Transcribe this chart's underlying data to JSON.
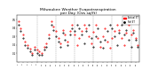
{
  "title": "Milwaukee Weather Evapotranspiration\nper Day (Ozs sq/ft)",
  "title_fontsize": 3.2,
  "background_color": "#ffffff",
  "red_series": [
    0.48,
    0.4,
    0.32,
    0.24,
    0.2,
    0.15,
    0.1,
    0.18,
    0.14,
    0.12,
    0.1,
    0.18,
    0.22,
    0.32,
    0.48,
    0.42,
    0.36,
    0.28,
    0.22,
    0.38,
    0.32,
    0.24,
    0.36,
    0.44,
    0.32,
    0.2,
    0.28,
    0.36,
    0.44,
    0.4,
    0.3,
    0.22,
    0.35,
    0.44,
    0.28,
    0.18,
    0.3,
    0.4,
    0.24,
    0.16,
    0.28,
    0.36,
    0.44,
    0.38,
    0.28,
    0.2,
    0.34,
    0.44,
    0.32,
    0.38,
    0.28,
    0.2
  ],
  "black_series": [
    0.44,
    0.36,
    0.28,
    0.2,
    0.16,
    0.12,
    0.08,
    0.14,
    0.1,
    0.08,
    0.08,
    0.14,
    0.18,
    0.28,
    0.44,
    0.38,
    0.3,
    0.24,
    0.18,
    0.34,
    0.26,
    0.2,
    0.32,
    0.4,
    0.36,
    0.44,
    0.4,
    0.32,
    0.22,
    0.36,
    0.44,
    0.28,
    0.18,
    0.3,
    0.4,
    0.24,
    0.16,
    0.26,
    0.36,
    0.44,
    0.4,
    0.3,
    0.2,
    0.34,
    0.44,
    0.32,
    0.38,
    0.26,
    0.18,
    0.34,
    0.26,
    0.18
  ],
  "ylim": [
    0.0,
    0.55
  ],
  "ytick_positions": [
    0.1,
    0.2,
    0.3,
    0.4,
    0.5
  ],
  "ytick_labels": [
    "0.1",
    "0.2",
    "0.3",
    "0.4",
    "0.5"
  ],
  "grid_color": "#999999",
  "red_color": "#ff0000",
  "black_color": "#000000",
  "marker_size": 0.9,
  "legend_labels": [
    "Actual ET",
    "Ref ET"
  ],
  "vline_positions": [
    8,
    16,
    24,
    32,
    40,
    48
  ],
  "n_points": 52,
  "figsize": [
    1.6,
    0.87
  ],
  "dpi": 100
}
